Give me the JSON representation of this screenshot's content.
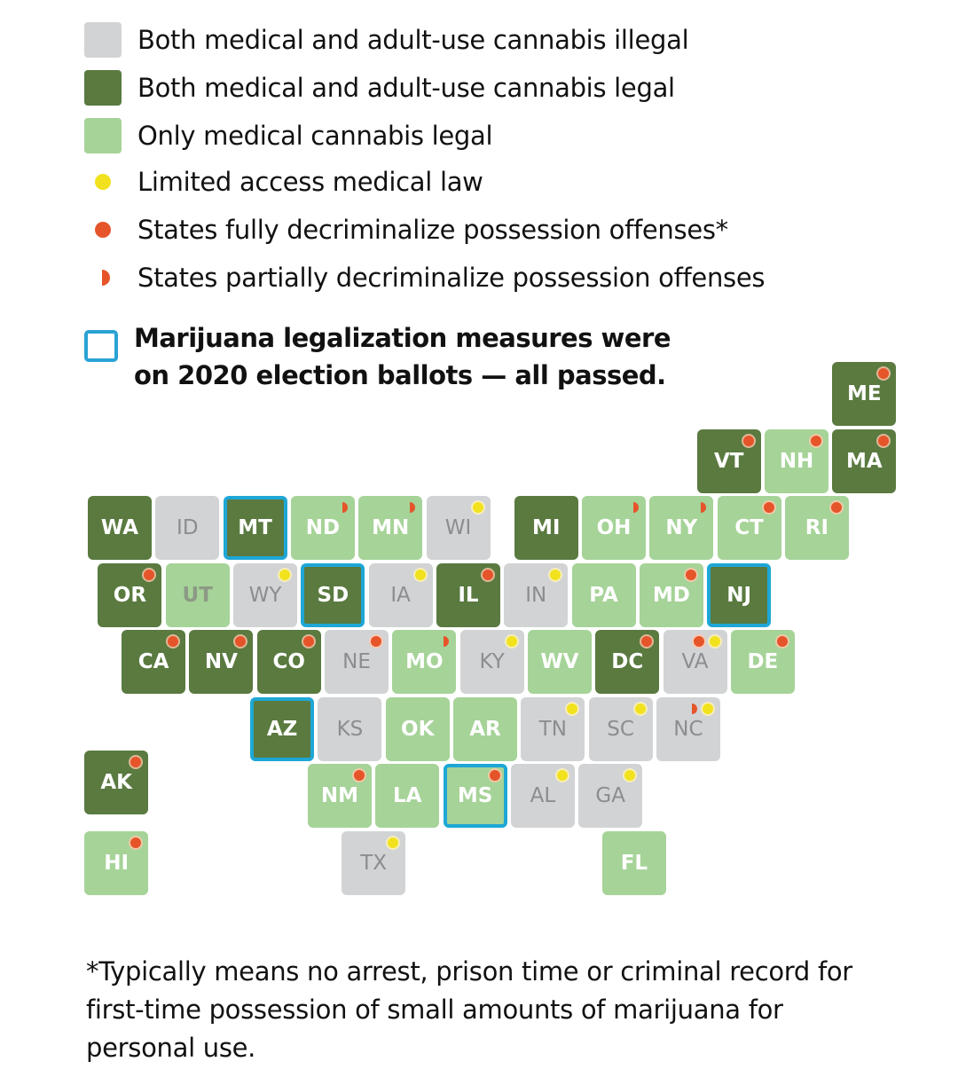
{
  "legend": {
    "illegal": "Both medical and adult-use cannabis illegal",
    "legal": "Both medical and adult-use cannabis legal",
    "medical_only": "Only medical cannabis legal",
    "limited": "Limited access medical law",
    "full_decrim": "States fully decriminalize possession offenses*",
    "partial_decrim": "States partially decriminalize possession offenses",
    "ballot_line1": "Marijuana legalization measures were",
    "ballot_line2": "on 2020 election ballots — all passed."
  },
  "colors": {
    "illegal": "#d2d3d5",
    "legal": "#5a7a40",
    "medical_only": "#a6d398",
    "limited": "#f2e21e",
    "decrim": "#e6542a",
    "ballot": "#1ea7d6"
  },
  "states": [
    {
      "abbr": "ME",
      "status": "legal",
      "markers": [
        "full"
      ],
      "ballot": false,
      "row": 0,
      "col": 11
    },
    {
      "abbr": "VT",
      "status": "legal",
      "markers": [
        "full"
      ],
      "ballot": false,
      "row": 1,
      "col": 9
    },
    {
      "abbr": "NH",
      "status": "medical",
      "markers": [
        "full"
      ],
      "ballot": false,
      "row": 1,
      "col": 10
    },
    {
      "abbr": "MA",
      "status": "legal",
      "markers": [
        "full"
      ],
      "ballot": false,
      "row": 1,
      "col": 11
    },
    {
      "abbr": "WA",
      "status": "legal",
      "markers": [],
      "ballot": false,
      "row": 2,
      "col": 0
    },
    {
      "abbr": "ID",
      "status": "illegal",
      "markers": [],
      "ballot": false,
      "row": 2,
      "col": 1
    },
    {
      "abbr": "MT",
      "status": "legal",
      "markers": [],
      "ballot": true,
      "row": 2,
      "col": 2
    },
    {
      "abbr": "ND",
      "status": "medical",
      "markers": [
        "partial"
      ],
      "ballot": false,
      "row": 2,
      "col": 3
    },
    {
      "abbr": "MN",
      "status": "medical",
      "markers": [
        "partial"
      ],
      "ballot": false,
      "row": 2,
      "col": 4
    },
    {
      "abbr": "WI",
      "status": "illegal",
      "markers": [
        "limited"
      ],
      "ballot": false,
      "row": 2,
      "col": 5
    },
    {
      "abbr": "MI",
      "status": "legal",
      "markers": [],
      "ballot": false,
      "row": 2,
      "col": 6.3
    },
    {
      "abbr": "OH",
      "status": "medical",
      "markers": [
        "partial"
      ],
      "ballot": false,
      "row": 2,
      "col": 7.3
    },
    {
      "abbr": "NY",
      "status": "medical",
      "markers": [
        "partial"
      ],
      "ballot": false,
      "row": 2,
      "col": 8.3
    },
    {
      "abbr": "CT",
      "status": "medical",
      "markers": [
        "full"
      ],
      "ballot": false,
      "row": 2,
      "col": 9.3
    },
    {
      "abbr": "RI",
      "status": "medical",
      "markers": [
        "full"
      ],
      "ballot": false,
      "row": 2,
      "col": 10.3
    },
    {
      "abbr": "OR",
      "status": "legal",
      "markers": [
        "full"
      ],
      "ballot": false,
      "row": 3,
      "col": 0.15
    },
    {
      "abbr": "UT",
      "status": "medical",
      "markers": [],
      "ballot": false,
      "row": 3,
      "col": 1.15
    },
    {
      "abbr": "WY",
      "status": "illegal",
      "markers": [
        "limited"
      ],
      "ballot": false,
      "row": 3,
      "col": 2.15
    },
    {
      "abbr": "SD",
      "status": "legal",
      "markers": [],
      "ballot": true,
      "row": 3,
      "col": 3.15
    },
    {
      "abbr": "IA",
      "status": "illegal",
      "markers": [
        "limited"
      ],
      "ballot": false,
      "row": 3,
      "col": 4.15
    },
    {
      "abbr": "IL",
      "status": "legal",
      "markers": [
        "full"
      ],
      "ballot": false,
      "row": 3,
      "col": 5.15
    },
    {
      "abbr": "IN",
      "status": "illegal",
      "markers": [
        "limited"
      ],
      "ballot": false,
      "row": 3,
      "col": 6.15
    },
    {
      "abbr": "PA",
      "status": "medical",
      "markers": [],
      "ballot": false,
      "row": 3,
      "col": 7.15
    },
    {
      "abbr": "MD",
      "status": "medical",
      "markers": [
        "full"
      ],
      "ballot": false,
      "row": 3,
      "col": 8.15
    },
    {
      "abbr": "NJ",
      "status": "legal",
      "markers": [],
      "ballot": true,
      "row": 3,
      "col": 9.15
    },
    {
      "abbr": "CA",
      "status": "legal",
      "markers": [
        "full"
      ],
      "ballot": false,
      "row": 4,
      "col": 0.5
    },
    {
      "abbr": "NV",
      "status": "legal",
      "markers": [
        "full"
      ],
      "ballot": false,
      "row": 4,
      "col": 1.5
    },
    {
      "abbr": "CO",
      "status": "legal",
      "markers": [
        "full"
      ],
      "ballot": false,
      "row": 4,
      "col": 2.5
    },
    {
      "abbr": "NE",
      "status": "illegal",
      "markers": [
        "full"
      ],
      "ballot": false,
      "row": 4,
      "col": 3.5
    },
    {
      "abbr": "MO",
      "status": "medical",
      "markers": [
        "partial"
      ],
      "ballot": false,
      "row": 4,
      "col": 4.5
    },
    {
      "abbr": "KY",
      "status": "illegal",
      "markers": [
        "limited"
      ],
      "ballot": false,
      "row": 4,
      "col": 5.5
    },
    {
      "abbr": "WV",
      "status": "medical",
      "markers": [],
      "ballot": false,
      "row": 4,
      "col": 6.5
    },
    {
      "abbr": "DC",
      "status": "legal",
      "markers": [
        "full"
      ],
      "ballot": false,
      "row": 4,
      "col": 7.5
    },
    {
      "abbr": "VA",
      "status": "illegal",
      "markers": [
        "full",
        "limited"
      ],
      "ballot": false,
      "row": 4,
      "col": 8.5
    },
    {
      "abbr": "DE",
      "status": "medical",
      "markers": [
        "full"
      ],
      "ballot": false,
      "row": 4,
      "col": 9.5
    },
    {
      "abbr": "AZ",
      "status": "legal",
      "markers": [],
      "ballot": true,
      "row": 5,
      "col": 2.4
    },
    {
      "abbr": "KS",
      "status": "illegal",
      "markers": [],
      "ballot": false,
      "row": 5,
      "col": 3.4
    },
    {
      "abbr": "OK",
      "status": "medical",
      "markers": [],
      "ballot": false,
      "row": 5,
      "col": 4.4
    },
    {
      "abbr": "AR",
      "status": "medical",
      "markers": [],
      "ballot": false,
      "row": 5,
      "col": 5.4
    },
    {
      "abbr": "TN",
      "status": "illegal",
      "markers": [
        "limited"
      ],
      "ballot": false,
      "row": 5,
      "col": 6.4
    },
    {
      "abbr": "SC",
      "status": "illegal",
      "markers": [
        "limited"
      ],
      "ballot": false,
      "row": 5,
      "col": 7.4
    },
    {
      "abbr": "NC",
      "status": "illegal",
      "markers": [
        "partial",
        "limited"
      ],
      "ballot": false,
      "row": 5,
      "col": 8.4
    },
    {
      "abbr": "AK",
      "status": "legal",
      "markers": [
        "full"
      ],
      "ballot": false,
      "row": 5.8,
      "col": -0.05
    },
    {
      "abbr": "NM",
      "status": "medical",
      "markers": [
        "full"
      ],
      "ballot": false,
      "row": 6,
      "col": 3.25
    },
    {
      "abbr": "LA",
      "status": "medical",
      "markers": [],
      "ballot": false,
      "row": 6,
      "col": 4.25
    },
    {
      "abbr": "MS",
      "status": "medical",
      "markers": [
        "full"
      ],
      "ballot": true,
      "row": 6,
      "col": 5.25
    },
    {
      "abbr": "AL",
      "status": "illegal",
      "markers": [
        "limited"
      ],
      "ballot": false,
      "row": 6,
      "col": 6.25
    },
    {
      "abbr": "GA",
      "status": "illegal",
      "markers": [
        "limited"
      ],
      "ballot": false,
      "row": 6,
      "col": 7.25
    },
    {
      "abbr": "HI",
      "status": "medical",
      "markers": [
        "full"
      ],
      "ballot": false,
      "row": 7,
      "col": -0.05
    },
    {
      "abbr": "TX",
      "status": "illegal",
      "markers": [
        "limited"
      ],
      "ballot": false,
      "row": 7,
      "col": 3.75
    },
    {
      "abbr": "FL",
      "status": "medical",
      "markers": [],
      "ballot": false,
      "row": 7,
      "col": 7.6
    }
  ],
  "footnote": "*Typically means no arrest, prison time or criminal record for first-time possession of small amounts of marijuana for personal use."
}
